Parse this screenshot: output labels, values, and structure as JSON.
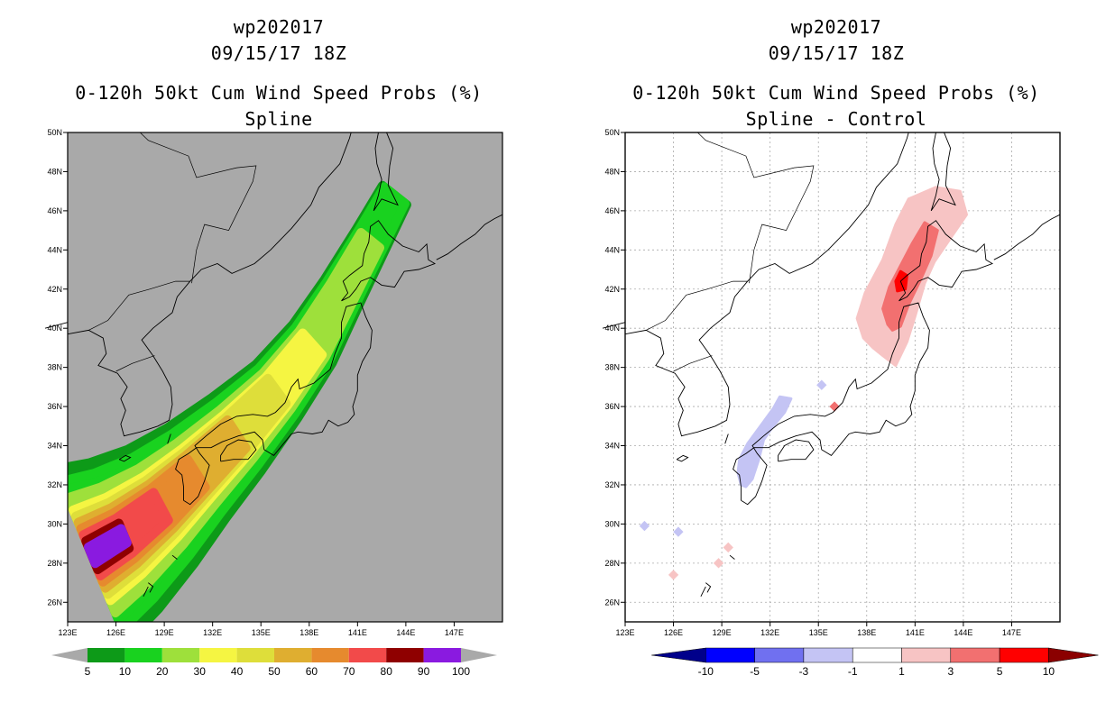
{
  "chart_data": [
    {
      "type": "heatmap",
      "storm_id": "wp202017",
      "date": "09/15/17 18Z",
      "title": "0-120h 50kt Cum Wind Speed Probs (%)",
      "subtitle": "Spline",
      "lon_range": [
        123,
        150
      ],
      "lat_range": [
        25,
        50
      ],
      "x_ticks": [
        "123E",
        "126E",
        "129E",
        "132E",
        "135E",
        "138E",
        "141E",
        "144E",
        "147E"
      ],
      "y_ticks": [
        "26N",
        "28N",
        "30N",
        "32N",
        "34N",
        "36N",
        "38N",
        "40N",
        "42N",
        "44N",
        "46N",
        "48N",
        "50N"
      ],
      "background_color": "#a9a9a9",
      "contour_levels": [
        {
          "level": 5,
          "color": "#0d9a18"
        },
        {
          "level": 10,
          "color": "#19d21f"
        },
        {
          "level": 20,
          "color": "#9ee03b"
        },
        {
          "level": 30,
          "color": "#f5f542"
        },
        {
          "level": 40,
          "color": "#dede3a"
        },
        {
          "level": 50,
          "color": "#dfae30"
        },
        {
          "level": 60,
          "color": "#e68a2e"
        },
        {
          "level": 70,
          "color": "#f24a4a"
        },
        {
          "level": 80,
          "color": "#8f0000"
        },
        {
          "level": 90,
          "color": "#8a1ae0"
        }
      ],
      "colorbar_labels": [
        "5",
        "10",
        "20",
        "30",
        "40",
        "50",
        "60",
        "70",
        "80",
        "90",
        "100"
      ],
      "track": [
        [
          124.5,
          28.4
        ],
        [
          126.5,
          29.4
        ],
        [
          128.8,
          30.9
        ],
        [
          131.0,
          32.6
        ],
        [
          133.5,
          34.6
        ],
        [
          136.0,
          36.8
        ],
        [
          138.2,
          39.2
        ],
        [
          140.0,
          41.8
        ],
        [
          141.8,
          44.5
        ],
        [
          143.3,
          46.8
        ]
      ],
      "band_half_width_deg": [
        2.0,
        1.7,
        1.35,
        1.05,
        0.8,
        0.55,
        0.4,
        0.25,
        0.15,
        0.08
      ]
    },
    {
      "type": "heatmap",
      "storm_id": "wp202017",
      "date": "09/15/17 18Z",
      "title": "0-120h 50kt Cum Wind Speed Probs (%)",
      "subtitle": "Spline - Control",
      "lon_range": [
        123,
        150
      ],
      "lat_range": [
        25,
        50
      ],
      "x_ticks": [
        "123E",
        "126E",
        "129E",
        "132E",
        "135E",
        "138E",
        "141E",
        "144E",
        "147E"
      ],
      "y_ticks": [
        "26N",
        "28N",
        "30N",
        "32N",
        "34N",
        "36N",
        "38N",
        "40N",
        "42N",
        "44N",
        "46N",
        "48N",
        "50N"
      ],
      "background_color": "#ffffff",
      "colorbar_colors": [
        "#00008b",
        "#0000ff",
        "#7070f0",
        "#c4c4f4",
        "#ffffff",
        "#f7c4c4",
        "#f27070",
        "#ff0000",
        "#8b0000"
      ],
      "colorbar_labels": [
        "-10",
        "-5",
        "-3",
        "-1",
        "1",
        "3",
        "5",
        "10"
      ],
      "regions": [
        {
          "name": "positive-1to3-north",
          "value": "1-3",
          "color": "#f7c4c4"
        },
        {
          "name": "positive-3to5-north",
          "value": "3-5",
          "color": "#f27070"
        },
        {
          "name": "positive-5to10-core",
          "value": "5-10",
          "color": "#ff0000"
        },
        {
          "name": "negative-1to3-kyushu",
          "value": "-3 to -1",
          "color": "#c4c4f4"
        }
      ]
    }
  ]
}
